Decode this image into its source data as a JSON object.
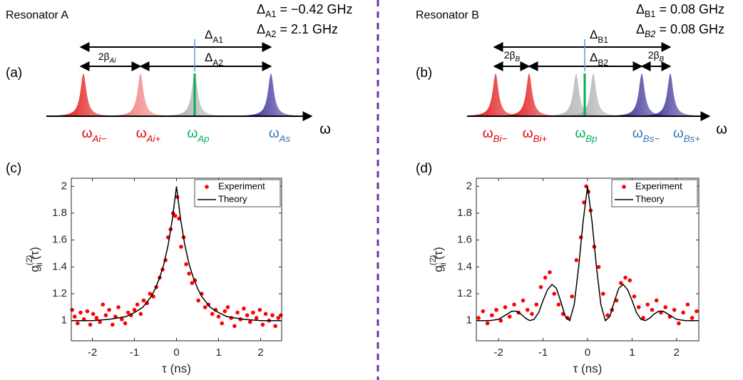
{
  "diagrams": [
    {
      "panel": "(a)",
      "title": "Resonator A",
      "specs": [
        {
          "symbol": "Δ",
          "sub": "A1",
          "text": " = −0.42 GHz"
        },
        {
          "symbol": "Δ",
          "sub": "A2",
          "text": " = 2.1 GHz"
        }
      ],
      "spans": [
        {
          "symbol": "Δ",
          "sub": "A1"
        },
        {
          "symbol": "Δ",
          "sub": "A2"
        },
        {
          "symbol": "2β",
          "sub": "Ai"
        }
      ],
      "modes": [
        {
          "symbol": "ω",
          "sub": "Ai−"
        },
        {
          "symbol": "ω",
          "sub": "Ai+"
        },
        {
          "symbol": "ω",
          "sub": "Ap"
        },
        {
          "symbol": "ω",
          "sub": "As"
        }
      ],
      "axis": "ω"
    },
    {
      "panel": "(b)",
      "title": "Resonator B",
      "specs": [
        {
          "symbol": "Δ",
          "sub": "B1",
          "text": " = 0.08 GHz"
        },
        {
          "symbol": "Δ",
          "sub": "B2",
          "text": " = 0.08 GHz"
        }
      ],
      "spans": [
        {
          "symbol": "Δ",
          "sub": "B1"
        },
        {
          "symbol": "Δ",
          "sub": "B2"
        },
        {
          "symbol": "2β",
          "sub": "B"
        },
        {
          "symbol": "2β",
          "sub": "B"
        }
      ],
      "modes": [
        {
          "symbol": "ω",
          "sub": "Bi−"
        },
        {
          "symbol": "ω",
          "sub": "Bi+"
        },
        {
          "symbol": "ω",
          "sub": "Bp"
        },
        {
          "symbol": "ω",
          "sub": "Bs−"
        },
        {
          "symbol": "ω",
          "sub": "Bs+"
        }
      ],
      "axis": "ω"
    }
  ],
  "chart_data": [
    {
      "type": "scatter",
      "panel": "(c)",
      "xlabel": "τ (ns)",
      "ylabel": {
        "symbol": "g",
        "subscript": "ii",
        "superscript": "(2)",
        "argument": "(τ)"
      },
      "xlim": [
        -2.5,
        2.5
      ],
      "xticks": [
        -2,
        -1,
        0,
        1,
        2
      ],
      "ylim": [
        0.85,
        2.06
      ],
      "yticks": [
        1,
        1.2,
        1.4,
        1.6,
        1.8,
        2
      ],
      "legend": "upper right",
      "series": [
        {
          "name": "Experiment",
          "color": "#ff0000",
          "style": "markers",
          "x": [
            -2.48,
            -2.42,
            -2.35,
            -2.28,
            -2.2,
            -2.12,
            -2.05,
            -1.98,
            -1.9,
            -1.82,
            -1.75,
            -1.68,
            -1.6,
            -1.52,
            -1.45,
            -1.38,
            -1.3,
            -1.22,
            -1.15,
            -1.08,
            -1.0,
            -0.93,
            -0.85,
            -0.78,
            -0.7,
            -0.63,
            -0.55,
            -0.48,
            -0.4,
            -0.33,
            -0.26,
            -0.2,
            -0.14,
            -0.08,
            -0.03,
            0.02,
            0.06,
            0.11,
            0.17,
            0.23,
            0.3,
            0.37,
            0.44,
            0.52,
            0.6,
            0.68,
            0.76,
            0.85,
            0.93,
            1.0,
            1.08,
            1.15,
            1.22,
            1.3,
            1.38,
            1.45,
            1.52,
            1.6,
            1.68,
            1.75,
            1.82,
            1.9,
            1.98,
            2.05,
            2.12,
            2.2,
            2.28,
            2.35,
            2.42,
            2.48
          ],
          "values": [
            1.08,
            1.03,
            0.98,
            1.06,
            1.01,
            1.07,
            0.97,
            1.05,
            1.02,
            0.99,
            1.12,
            1.04,
            1.08,
            0.97,
            1.03,
            1.1,
            1.01,
            0.98,
            1.06,
            1.04,
            1.08,
            1.12,
            1.05,
            1.15,
            1.13,
            1.2,
            1.18,
            1.25,
            1.32,
            1.38,
            1.45,
            1.62,
            1.68,
            1.8,
            1.78,
            1.92,
            1.76,
            1.55,
            1.62,
            1.42,
            1.35,
            1.28,
            1.3,
            1.15,
            1.2,
            1.1,
            1.12,
            1.05,
            1.08,
            1.03,
            0.98,
            1.07,
            1.1,
            1.02,
            0.96,
            1.06,
            1.01,
            1.09,
            1.04,
            0.99,
            1.06,
            1.02,
            1.08,
            0.97,
            1.05,
            1.0,
            1.04,
            0.96,
            1.02,
            1.04
          ]
        },
        {
          "name": "Theory",
          "color": "#000000",
          "style": "line",
          "x": [
            -2.5,
            -2,
            -1.6,
            -1.4,
            -1.2,
            -1,
            -0.9,
            -0.8,
            -0.7,
            -0.6,
            -0.5,
            -0.4,
            -0.3,
            -0.2,
            -0.1,
            0,
            0.1,
            0.2,
            0.3,
            0.4,
            0.5,
            0.6,
            0.7,
            0.8,
            0.9,
            1,
            1.2,
            1.4,
            1.6,
            2,
            2.5
          ],
          "values": [
            1,
            1,
            1.01,
            1.02,
            1.03,
            1.06,
            1.08,
            1.1,
            1.14,
            1.18,
            1.24,
            1.32,
            1.42,
            1.56,
            1.75,
            2,
            1.75,
            1.56,
            1.42,
            1.32,
            1.24,
            1.18,
            1.14,
            1.1,
            1.08,
            1.06,
            1.03,
            1.02,
            1.01,
            1,
            1
          ]
        }
      ]
    },
    {
      "type": "scatter",
      "panel": "(d)",
      "xlabel": "τ (ns)",
      "ylabel": {
        "symbol": "g",
        "subscript": "ii",
        "superscript": "(2)",
        "argument": "(τ)"
      },
      "xlim": [
        -2.5,
        2.5
      ],
      "xticks": [
        -2,
        -1,
        0,
        1,
        2
      ],
      "ylim": [
        0.85,
        2.06
      ],
      "yticks": [
        1,
        1.2,
        1.4,
        1.6,
        1.8,
        2
      ],
      "legend": "upper right",
      "series": [
        {
          "name": "Experiment",
          "color": "#ff0000",
          "style": "markers",
          "x": [
            -2.45,
            -2.35,
            -2.25,
            -2.15,
            -2.05,
            -1.95,
            -1.85,
            -1.75,
            -1.65,
            -1.55,
            -1.45,
            -1.35,
            -1.25,
            -1.15,
            -1.05,
            -0.95,
            -0.85,
            -0.75,
            -0.65,
            -0.55,
            -0.45,
            -0.35,
            -0.25,
            -0.15,
            -0.08,
            -0.03,
            0.02,
            0.07,
            0.15,
            0.25,
            0.35,
            0.45,
            0.55,
            0.65,
            0.75,
            0.85,
            0.95,
            1.05,
            1.15,
            1.25,
            1.35,
            1.45,
            1.55,
            1.65,
            1.75,
            1.85,
            1.95,
            2.05,
            2.15,
            2.25,
            2.35,
            2.45
          ],
          "values": [
            1.02,
            1.07,
            0.98,
            1.04,
            1.08,
            1.0,
            1.1,
            1.03,
            1.12,
            1.06,
            1.15,
            1.08,
            1.05,
            1.12,
            1.25,
            1.32,
            1.36,
            1.2,
            1.12,
            1.05,
            1.02,
            1.18,
            1.45,
            1.62,
            1.88,
            2.0,
            1.96,
            1.82,
            1.55,
            1.4,
            1.2,
            1.04,
            1.08,
            1.15,
            1.28,
            1.32,
            1.3,
            1.18,
            1.1,
            1.02,
            1.12,
            1.08,
            1.15,
            1.06,
            1.1,
            1.03,
            1.08,
            0.98,
            1.06,
            1.12,
            1.02,
            1.07
          ]
        },
        {
          "name": "Theory",
          "color": "#000000",
          "style": "line",
          "x": [
            -2.5,
            -2.2,
            -2,
            -1.9,
            -1.8,
            -1.7,
            -1.6,
            -1.5,
            -1.4,
            -1.3,
            -1.2,
            -1.1,
            -1,
            -0.9,
            -0.8,
            -0.7,
            -0.6,
            -0.5,
            -0.4,
            -0.3,
            -0.2,
            -0.1,
            0,
            0.1,
            0.2,
            0.3,
            0.4,
            0.5,
            0.6,
            0.7,
            0.8,
            0.9,
            1,
            1.1,
            1.2,
            1.3,
            1.4,
            1.5,
            1.6,
            1.7,
            1.8,
            1.9,
            2,
            2.2,
            2.5
          ],
          "values": [
            1,
            1,
            1.01,
            1.03,
            1.05,
            1.07,
            1.07,
            1.05,
            1.02,
            1,
            1.01,
            1.06,
            1.15,
            1.23,
            1.27,
            1.24,
            1.14,
            1.03,
            1,
            1.12,
            1.4,
            1.74,
            2,
            1.74,
            1.4,
            1.12,
            1,
            1.03,
            1.14,
            1.24,
            1.27,
            1.23,
            1.15,
            1.06,
            1.01,
            1,
            1.02,
            1.05,
            1.07,
            1.07,
            1.05,
            1.03,
            1.01,
            1,
            1
          ]
        }
      ]
    }
  ]
}
